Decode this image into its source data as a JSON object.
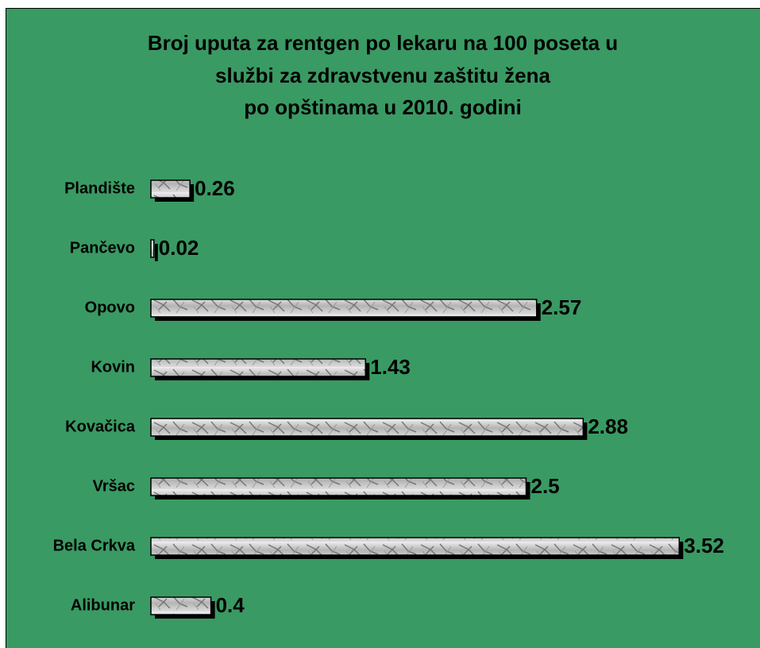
{
  "chart_data": {
    "type": "bar",
    "orientation": "horizontal",
    "title": [
      "Broj uputa za rentgen po lekaru na 100 poseta u",
      "službi za zdravstvenu zaštitu žena",
      "po opštinama u 2010. godini"
    ],
    "categories": [
      "Plandište",
      "Pančevo",
      "Opovo",
      "Kovin",
      "Kovačica",
      "Vršac",
      "Bela Crkva",
      "Alibunar"
    ],
    "values": [
      0.26,
      0.02,
      2.57,
      1.43,
      2.88,
      2.5,
      3.52,
      0.4
    ],
    "color": "#c8c8c8",
    "background": "#3a9a63"
  }
}
